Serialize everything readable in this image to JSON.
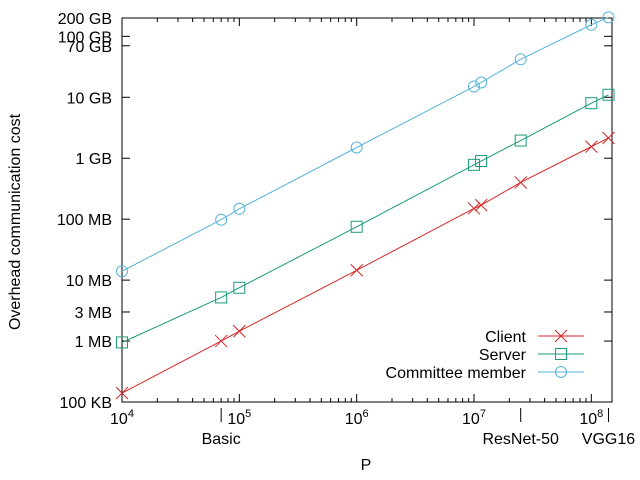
{
  "chart_data": {
    "type": "line",
    "title": "",
    "xlabel": "P",
    "ylabel": "Overhead communication cost",
    "x_scale": "log",
    "y_scale": "log",
    "x_range": [
      10000,
      150000000
    ],
    "y_range": [
      100,
      200000000
    ],
    "x_ticks": [
      {
        "value": 10000,
        "base": "10",
        "exp": "4"
      },
      {
        "value": 100000,
        "base": "10",
        "exp": "5"
      },
      {
        "value": 1000000,
        "base": "10",
        "exp": "6"
      },
      {
        "value": 10000000,
        "base": "10",
        "exp": "7"
      },
      {
        "value": 100000000,
        "base": "10",
        "exp": "8"
      }
    ],
    "y_ticks": [
      {
        "value": 100,
        "label": "100 KB"
      },
      {
        "value": 1000,
        "label": "1 MB"
      },
      {
        "value": 3000,
        "label": "3 MB"
      },
      {
        "value": 10000,
        "label": "10 MB"
      },
      {
        "value": 100000,
        "label": "100 MB"
      },
      {
        "value": 1000000,
        "label": "1 GB"
      },
      {
        "value": 10000000,
        "label": "10 GB"
      },
      {
        "value": 70000000,
        "label": "70 GB"
      },
      {
        "value": 100000000,
        "label": "100 GB"
      },
      {
        "value": 200000000,
        "label": "200 GB"
      }
    ],
    "annotations": [
      {
        "x": 70000,
        "text": "Basic"
      },
      {
        "x": 25000000,
        "text": "ResNet-50"
      },
      {
        "x": 140000000,
        "text": "VGG16"
      }
    ],
    "series": [
      {
        "name": "Client",
        "color": "#d62728",
        "marker": "x",
        "x": [
          10000,
          70000,
          100000,
          1000000,
          10000000,
          11500000,
          25000000,
          100000000,
          140000000
        ],
        "y": [
          140,
          1000,
          1450,
          14500,
          150000,
          170000,
          400000,
          1550000,
          2150000
        ]
      },
      {
        "name": "Server",
        "color": "#1a9a7a",
        "marker": "square",
        "x": [
          10000,
          70000,
          100000,
          1000000,
          10000000,
          11500000,
          25000000,
          100000000,
          140000000
        ],
        "y": [
          950,
          5200,
          7500,
          75000,
          780000,
          900000,
          1950000,
          8000000,
          11000000
        ]
      },
      {
        "name": "Committee member",
        "color": "#56b4d8",
        "marker": "circle",
        "x": [
          10000,
          70000,
          100000,
          1000000,
          10000000,
          11500000,
          25000000,
          100000000,
          140000000
        ],
        "y": [
          14000,
          98000,
          148000,
          1500000,
          15000000,
          17500000,
          42000000,
          155000000,
          205000000
        ]
      }
    ],
    "legend": {
      "position": "bottom-right"
    },
    "grid": false
  }
}
